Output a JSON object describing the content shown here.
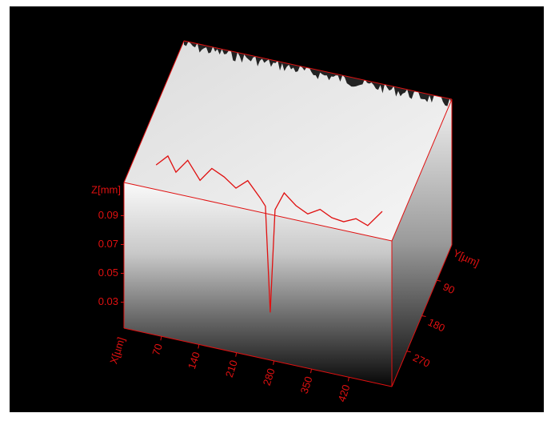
{
  "chart_data": {
    "type": "surface3d",
    "x_label": "X[µm]",
    "y_label": "Y[µm]",
    "z_label": "Z[mm]",
    "xlim": [
      0,
      500
    ],
    "xticks": [
      70,
      140,
      210,
      280,
      350,
      420
    ],
    "ylim": [
      0,
      360
    ],
    "yticks": [
      90,
      180,
      270
    ],
    "zlim": [
      0.012,
      0.113
    ],
    "zticks": [
      0.03,
      0.05,
      0.07,
      0.09
    ],
    "axis_color": "#e01010",
    "profile": {
      "color": "#e01010",
      "x": [
        60,
        82,
        97,
        119,
        142,
        164,
        187,
        209,
        231,
        254,
        264,
        273,
        282,
        299,
        321,
        343,
        366,
        388,
        410,
        433,
        455,
        482
      ],
      "z": [
        0.13,
        0.138,
        0.128,
        0.138,
        0.126,
        0.136,
        0.132,
        0.126,
        0.133,
        0.123,
        0.118,
        0.045,
        0.117,
        0.13,
        0.123,
        0.119,
        0.124,
        0.12,
        0.119,
        0.123,
        0.12,
        0.132
      ]
    }
  }
}
